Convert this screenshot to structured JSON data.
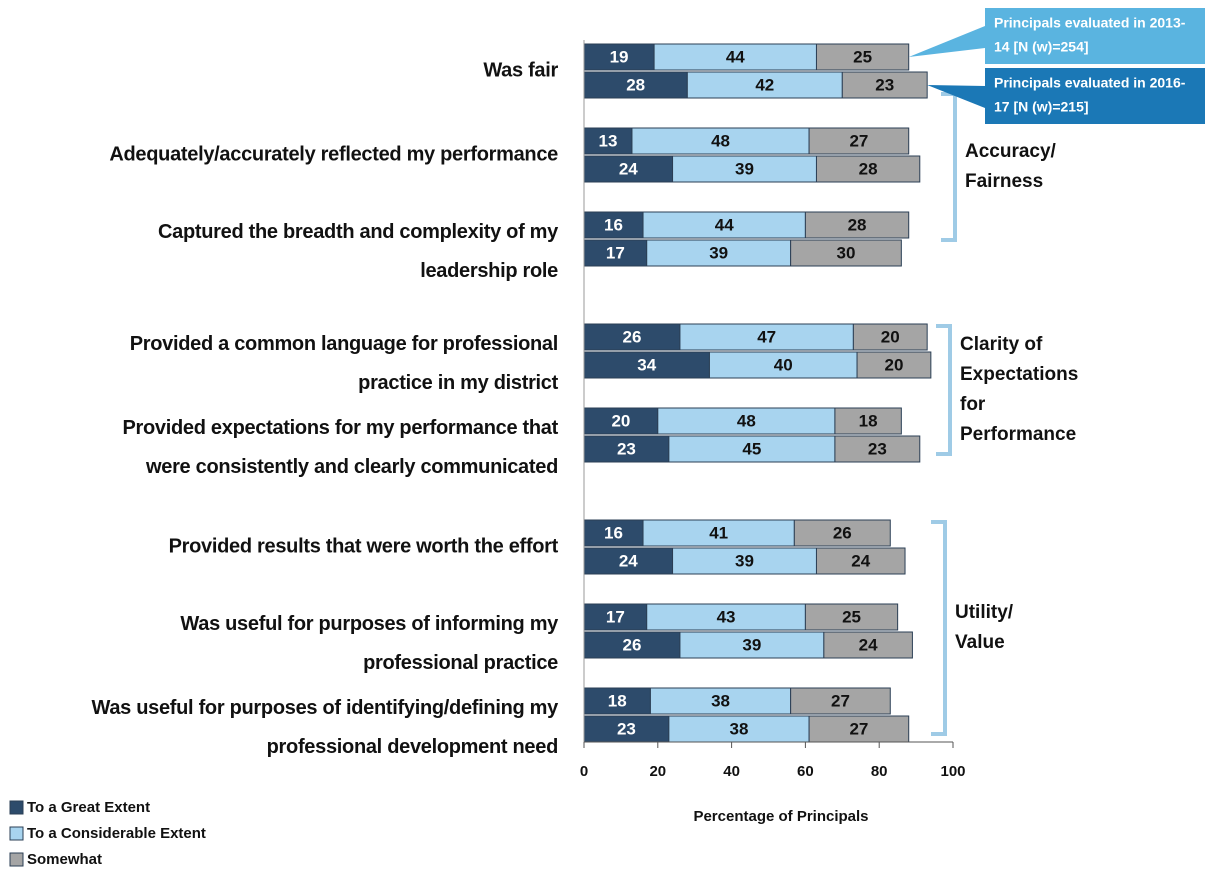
{
  "chart_data": {
    "type": "grouped_stacked_barh",
    "xlabel": "Percentage of Principals",
    "xlim": [
      0,
      100
    ],
    "xticks": [
      0,
      20,
      40,
      60,
      80,
      100
    ],
    "series": [
      {
        "name": "To a Great Extent",
        "color": "#2d4b6b"
      },
      {
        "name": "To a Considerable Extent",
        "color": "#a8d4ef"
      },
      {
        "name": "Somewhat",
        "color": "#a5a5a5"
      }
    ],
    "cohorts": [
      {
        "label": [
          "Principals evaluated in 2013-",
          "14 [N (w)=254]"
        ],
        "color": "#5ab4e0"
      },
      {
        "label": [
          "Principals evaluated in 2016-",
          "17 [N (w)=215]"
        ],
        "color": "#1b78b6"
      }
    ],
    "groups": [
      {
        "label": [
          "Accuracy/",
          "Fairness"
        ],
        "items": [
          {
            "label": [
              "Was fair"
            ],
            "values": [
              [
                19,
                44,
                25
              ],
              [
                28,
                42,
                23
              ]
            ]
          },
          {
            "label": [
              "Adequately/accurately reflected my performance"
            ],
            "values": [
              [
                13,
                48,
                27
              ],
              [
                24,
                39,
                28
              ]
            ]
          },
          {
            "label": [
              "Captured the breadth and complexity of my",
              "leadership role"
            ],
            "values": [
              [
                16,
                44,
                28
              ],
              [
                17,
                39,
                30
              ]
            ]
          }
        ]
      },
      {
        "label": [
          "Clarity of",
          "Expectations",
          "for",
          "Performance"
        ],
        "items": [
          {
            "label": [
              "Provided a common language for professional",
              "practice in my district"
            ],
            "values": [
              [
                26,
                47,
                20
              ],
              [
                34,
                40,
                20
              ]
            ]
          },
          {
            "label": [
              "Provided expectations for my performance that",
              "were consistently and clearly communicated"
            ],
            "values": [
              [
                20,
                48,
                18
              ],
              [
                23,
                45,
                23
              ]
            ]
          }
        ]
      },
      {
        "label": [
          "Utility/",
          "Value"
        ],
        "items": [
          {
            "label": [
              "Provided results that were worth the effort"
            ],
            "values": [
              [
                16,
                41,
                26
              ],
              [
                24,
                39,
                24
              ]
            ]
          },
          {
            "label": [
              "Was useful for purposes of informing my",
              "professional practice"
            ],
            "values": [
              [
                17,
                43,
                25
              ],
              [
                26,
                39,
                24
              ]
            ]
          },
          {
            "label": [
              "Was useful for purposes of identifying/defining my",
              "professional development need"
            ],
            "values": [
              [
                18,
                38,
                27
              ],
              [
                23,
                38,
                27
              ]
            ]
          }
        ]
      }
    ]
  }
}
